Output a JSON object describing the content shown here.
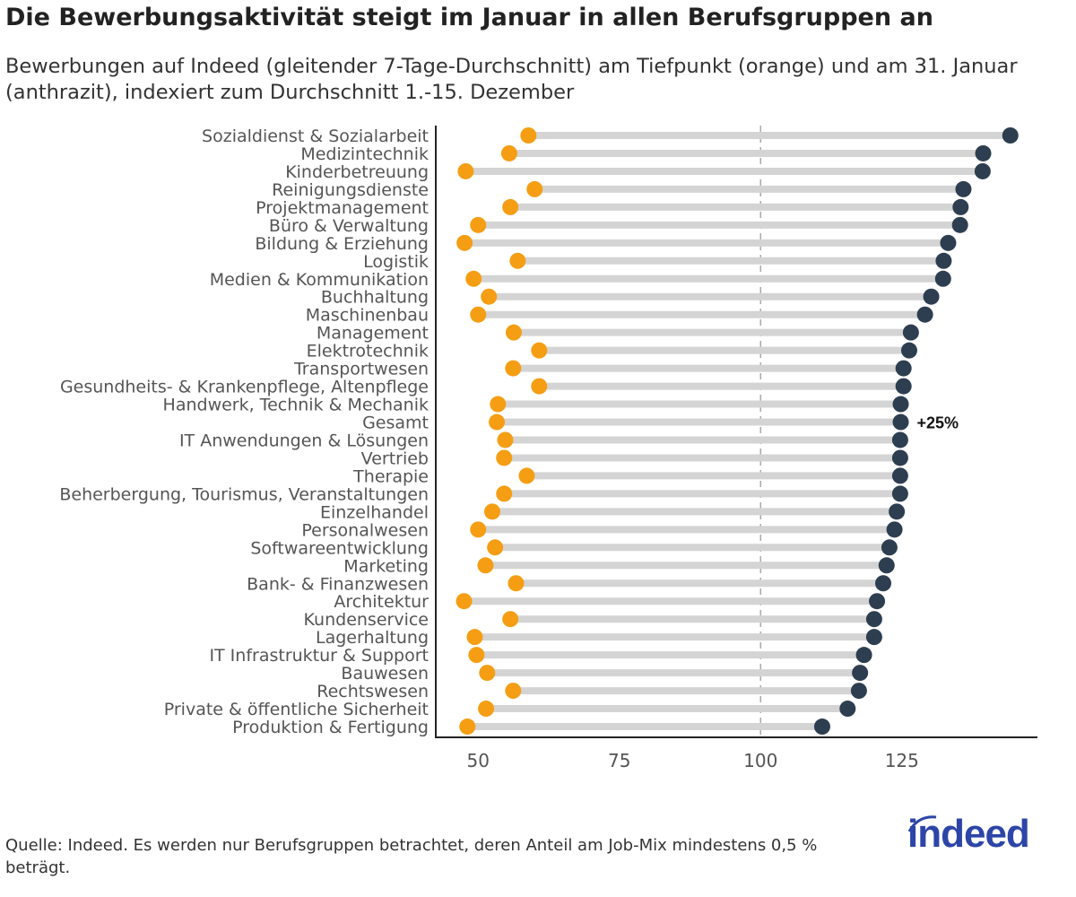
{
  "title": "Die Bewerbungsaktivität steigt im Januar in allen Berufsgruppen an",
  "subtitle": "Bewerbungen auf Indeed (gleitender 7-Tage-Durchschnitt) am Tiefpunkt (orange) und am 31. Januar (anthrazit), indexiert zum Durchschnitt 1.-15. Dezember",
  "source": "Quelle: Indeed. Es werden nur Berufsgruppen betrachtet, deren Anteil am Job-Mix mindestens 0,5 % beträgt.",
  "logo_text": "indeed",
  "colors": {
    "low": "#f59e14",
    "end": "#2d3e50",
    "segment": "#d4d4d4",
    "logo": "#2d45a8"
  },
  "chart_data": {
    "type": "dumbbell",
    "xlim": [
      42.5,
      149
    ],
    "xticks": [
      50,
      75,
      100,
      125
    ],
    "reference_line": 100,
    "grid": false,
    "annotation": {
      "category": "Gesamt",
      "text": "+25%"
    },
    "categories": [
      "Sozialdienst & Sozialarbeit",
      "Medizintechnik",
      "Kinderbetreuung",
      "Reinigungsdienste",
      "Projektmanagement",
      "Büro & Verwaltung",
      "Bildung & Erziehung",
      "Logistik",
      "Medien & Kommunikation",
      "Buchhaltung",
      "Maschinenbau",
      "Management",
      "Elektrotechnik",
      "Transportwesen",
      "Gesundheits- & Krankenpflege, Altenpflege",
      "Handwerk, Technik & Mechanik",
      "Gesamt",
      "IT Anwendungen & Lösungen",
      "Vertrieb",
      "Therapie",
      "Beherbergung, Tourismus, Veranstaltungen",
      "Einzelhandel",
      "Personalwesen",
      "Softwareentwicklung",
      "Marketing",
      "Bank- & Finanzwesen",
      "Architektur",
      "Kundenservice",
      "Lagerhaltung",
      "IT Infrastruktur & Support",
      "Bauwesen",
      "Rechtswesen",
      "Private & öffentliche Sicherheit",
      "Produktion & Fertigung"
    ],
    "series": [
      {
        "values": [
          58.9,
          55.5,
          47.8,
          60.0,
          55.7,
          50.0,
          47.6,
          57.0,
          49.2,
          51.9,
          50.0,
          56.3,
          60.8,
          56.2,
          60.8,
          53.5,
          53.3,
          54.8,
          54.6,
          58.6,
          54.6,
          52.5,
          50.0,
          53.0,
          51.3,
          56.7,
          47.5,
          55.7,
          49.4,
          49.7,
          51.6,
          56.2,
          51.4,
          48.1
        ]
      },
      {
        "values": [
          144.2,
          139.4,
          139.3,
          135.9,
          135.4,
          135.3,
          133.2,
          132.4,
          132.3,
          130.2,
          129.1,
          126.6,
          126.3,
          125.3,
          125.3,
          124.8,
          124.8,
          124.7,
          124.7,
          124.7,
          124.7,
          124.1,
          123.7,
          122.8,
          122.3,
          121.7,
          120.6,
          120.1,
          120.1,
          118.3,
          117.6,
          117.4,
          115.4,
          110.9
        ]
      }
    ]
  }
}
